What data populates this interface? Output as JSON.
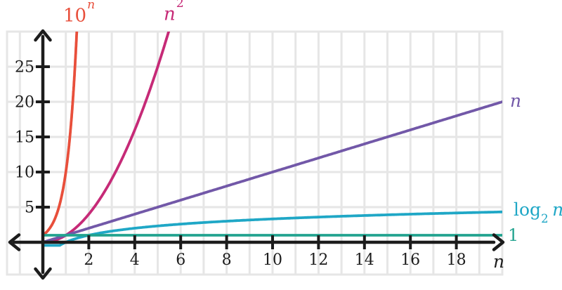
{
  "figure": {
    "background": "#ffffff",
    "grid_color": "#e6e6e6",
    "axis_color": "#1c1c1c"
  },
  "chart_data": {
    "type": "line",
    "xlabel": "n",
    "ylabel": "",
    "grid": "on",
    "legend_position": "curve-end-labels",
    "x_axis": {
      "label": "n",
      "min": 0,
      "max": 20,
      "grid_step": 1,
      "tick_step": 2,
      "ticks": [
        2,
        4,
        6,
        8,
        10,
        12,
        14,
        16,
        18
      ]
    },
    "y_axis": {
      "min": 0,
      "max": 30,
      "grid_step": 5,
      "tick_step": 5,
      "ticks": [
        5,
        10,
        15,
        20,
        25
      ]
    },
    "series": [
      {
        "id": "exp10",
        "label": "10^n",
        "label_parts": {
          "base": "10",
          "sup": "n"
        },
        "color": "#e84f3b",
        "fn": "pow10",
        "domain": [
          0,
          1.65
        ],
        "points": [
          [
            0,
            1
          ],
          [
            0.5,
            3.16
          ],
          [
            1,
            10
          ],
          [
            1.3,
            20
          ],
          [
            1.477,
            30
          ]
        ]
      },
      {
        "id": "square",
        "label": "n^2",
        "label_parts": {
          "base": "n",
          "sup": "2"
        },
        "color": "#c62a77",
        "fn": "square",
        "domain": [
          0,
          5.75
        ],
        "points": [
          [
            0,
            0
          ],
          [
            1,
            1
          ],
          [
            2,
            4
          ],
          [
            3,
            9
          ],
          [
            4,
            16
          ],
          [
            5,
            25
          ],
          [
            5.48,
            30
          ]
        ]
      },
      {
        "id": "linear",
        "label": "n",
        "label_parts": {
          "base": "n"
        },
        "color": "#7258a8",
        "fn": "linear",
        "domain": [
          0,
          20
        ],
        "points": [
          [
            0,
            0
          ],
          [
            5,
            5
          ],
          [
            10,
            10
          ],
          [
            15,
            15
          ],
          [
            20,
            20
          ]
        ]
      },
      {
        "id": "log2",
        "label": "log2 n",
        "label_parts": {
          "fname": "log",
          "sub": "2",
          "arg": "n"
        },
        "color": "#1fa7c6",
        "fn": "log2",
        "domain": [
          0.02,
          20
        ],
        "clamp_min": -0.45,
        "points": [
          [
            1,
            0
          ],
          [
            2,
            1
          ],
          [
            4,
            2
          ],
          [
            8,
            3
          ],
          [
            16,
            4
          ],
          [
            20,
            4.32
          ]
        ]
      },
      {
        "id": "one",
        "label": "1",
        "label_parts": {
          "base": "1"
        },
        "color": "#22a38f",
        "fn": "one",
        "domain": [
          0,
          20
        ],
        "points": [
          [
            0,
            1
          ],
          [
            20,
            1
          ]
        ]
      }
    ]
  }
}
